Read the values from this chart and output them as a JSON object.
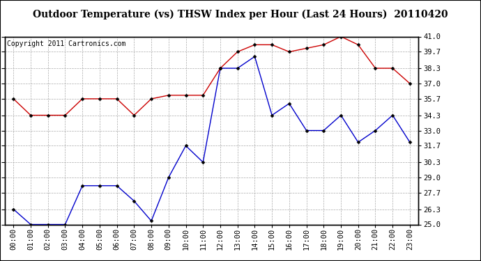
{
  "title": "Outdoor Temperature (vs) THSW Index per Hour (Last 24 Hours)  20110420",
  "copyright": "Copyright 2011 Cartronics.com",
  "x_labels": [
    "00:00",
    "01:00",
    "02:00",
    "03:00",
    "04:00",
    "05:00",
    "06:00",
    "07:00",
    "08:00",
    "09:00",
    "10:00",
    "11:00",
    "12:00",
    "13:00",
    "14:00",
    "15:00",
    "16:00",
    "17:00",
    "18:00",
    "19:00",
    "20:00",
    "21:00",
    "22:00",
    "23:00"
  ],
  "blue_data": [
    26.3,
    25.0,
    25.0,
    25.0,
    28.3,
    28.3,
    28.3,
    27.0,
    25.3,
    29.0,
    31.7,
    30.3,
    38.3,
    38.3,
    39.3,
    34.3,
    35.3,
    33.0,
    33.0,
    34.3,
    32.0,
    33.0,
    34.3,
    32.0
  ],
  "red_data": [
    35.7,
    34.3,
    34.3,
    34.3,
    35.7,
    35.7,
    35.7,
    34.3,
    35.7,
    36.0,
    36.0,
    36.0,
    38.3,
    39.7,
    40.3,
    40.3,
    39.7,
    40.0,
    40.3,
    41.0,
    40.3,
    38.3,
    38.3,
    37.0
  ],
  "ylim": [
    25.0,
    41.0
  ],
  "yticks": [
    25.0,
    26.3,
    27.7,
    29.0,
    30.3,
    31.7,
    33.0,
    34.3,
    35.7,
    37.0,
    38.3,
    39.7,
    41.0
  ],
  "blue_color": "#0000cc",
  "red_color": "#cc0000",
  "bg_color": "#ffffff",
  "plot_bg_color": "#ffffff",
  "grid_color": "#aaaaaa",
  "title_fontsize": 10,
  "copyright_fontsize": 7,
  "tick_fontsize": 7.5,
  "marker": "D",
  "marker_size": 2.5
}
